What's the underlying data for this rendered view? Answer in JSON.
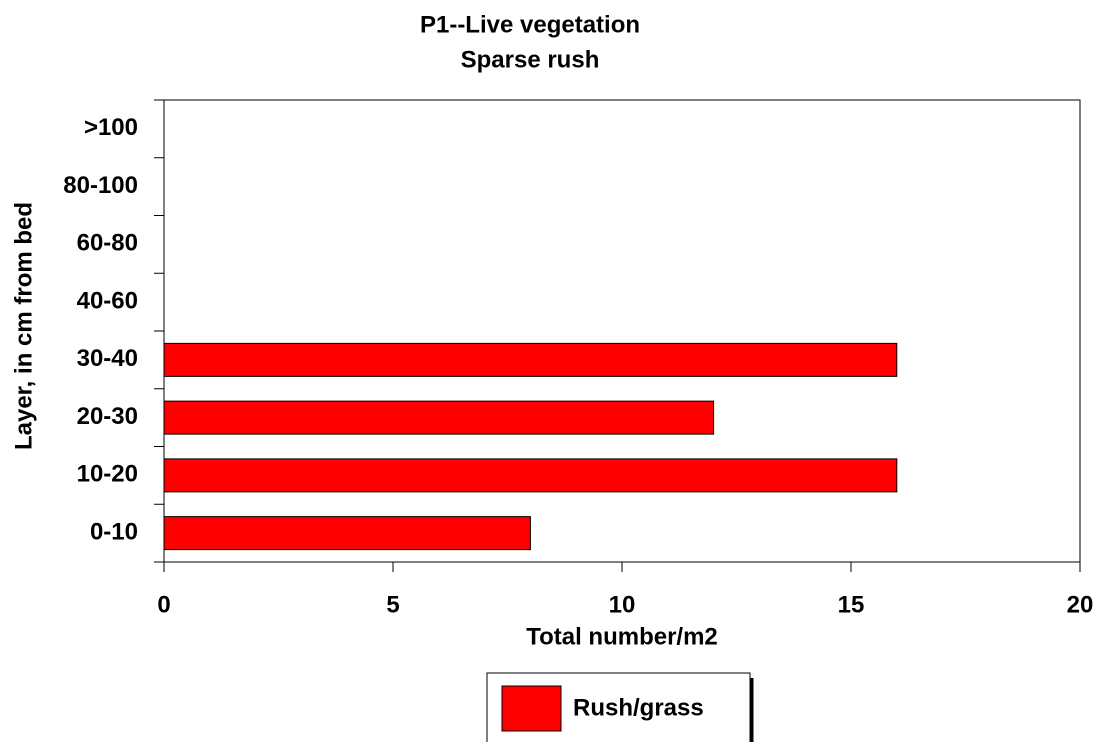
{
  "chart_data": {
    "type": "barh",
    "title": "P1--Live vegetation",
    "subtitle": "Sparse rush",
    "xlabel": "Total number/m2",
    "ylabel": "Layer, in cm from bed",
    "categories": [
      "0-10",
      "10-20",
      "20-30",
      "30-40",
      "40-60",
      "60-80",
      "80-100",
      ">100"
    ],
    "series": [
      {
        "name": "Rush/grass",
        "color": "#ff0000",
        "values": [
          8,
          16,
          12,
          16,
          0,
          0,
          0,
          0
        ]
      }
    ],
    "xlim": [
      0,
      20
    ],
    "xticks": [
      0,
      5,
      10,
      15,
      20
    ],
    "legend": "bottom"
  }
}
